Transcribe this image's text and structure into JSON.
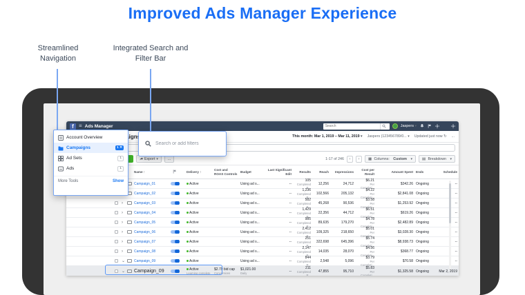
{
  "title": "Improved Ads Manager Experience",
  "callouts": {
    "navigation": "Streamlined Navigation",
    "search": "Integrated Search and Filter Bar"
  },
  "topbar": {
    "app_name": "Ads Manager",
    "search_placeholder": "Search",
    "user_name": "Jaspers",
    "caret": "▾"
  },
  "subheader": {
    "page_title": "Campaigns",
    "date_range": "This month: Mar 1, 2019 – Mar 11, 2019",
    "account": "Jaspers (123456789/0...",
    "updated": "Updated just now",
    "refresh_icon": "↻",
    "more": "..."
  },
  "search_overlay": {
    "placeholder": "Search or add filters"
  },
  "nav_overlay": {
    "items": [
      {
        "label": "Account Overview",
        "badge": ""
      },
      {
        "label": "Campaigns",
        "badge": "1 ✕"
      },
      {
        "label": "Ad Sets",
        "badge": "1"
      },
      {
        "label": "Ads",
        "badge": "1"
      }
    ],
    "more_tools": "More Tools",
    "show": "Show"
  },
  "toolbar": {
    "create": "Create",
    "export": "Export",
    "more": "...",
    "pagination": "1-17 of 246",
    "prev": "‹",
    "next": "›",
    "columns_label": "Columns:",
    "columns_value": "Custom",
    "breakdown": "Breakdown",
    "caret": "▾"
  },
  "table": {
    "headers": {
      "name": "Name ↑",
      "delivery": "Delivery ↑",
      "roas": "Cost and ROAS Controls",
      "budget": "Budget",
      "lastedit": "Last Significant Edit",
      "results": "Results",
      "reach": "Reach",
      "impressions": "Impressions",
      "cpr": "Cost per Result",
      "spent": "Amount Spent",
      "ends": "Ends",
      "schedule": "Schedule"
    },
    "rows": [
      {
        "name": "Campaign_01",
        "delivery": "Active",
        "budget": "Using ad s...",
        "lastedit": "--",
        "results": "105",
        "results_sub": "Completed R...",
        "reach": "12,256",
        "impressions": "24,712",
        "cpr": "$6.21",
        "cpr_sub": "Per Completi...",
        "spent": "$342.26",
        "ends": "Ongoing",
        "schedule": "--"
      },
      {
        "name": "Campaign_02",
        "delivery": "Active",
        "budget": "Using ad s...",
        "lastedit": "--",
        "results": "1,236",
        "results_sub": "Completed R...",
        "reach": "102,566",
        "impressions": "205,132",
        "cpr": "$4.22",
        "cpr_sub": "Per Completi...",
        "spent": "$2,841.08",
        "ends": "Ongoing",
        "schedule": "--"
      },
      {
        "name": "Campaign_03",
        "delivery": "Active",
        "budget": "Using ad s...",
        "lastedit": "--",
        "results": "582",
        "results_sub": "Completed R...",
        "reach": "45,268",
        "impressions": "90,536",
        "cpr": "$3.58",
        "cpr_sub": "Per Completi...",
        "spent": "$1,253.92",
        "ends": "Ongoing",
        "schedule": "--"
      },
      {
        "name": "Campaign_04",
        "delivery": "Active",
        "budget": "Using ad s...",
        "lastedit": "--",
        "results": "1,429",
        "results_sub": "Completed R...",
        "reach": "22,356",
        "impressions": "44,712",
        "cpr": "$6.51",
        "cpr_sub": "Per Completi...",
        "spent": "$619.26",
        "ends": "Ongoing",
        "schedule": "--"
      },
      {
        "name": "Campaign_05",
        "delivery": "Active",
        "budget": "Using ad s...",
        "lastedit": "--",
        "results": "985",
        "results_sub": "Completed R...",
        "reach": "89,635",
        "impressions": "179,270",
        "cpr": "$4.78",
        "cpr_sub": "Per Completi...",
        "spent": "$2,482.89",
        "ends": "Ongoing",
        "schedule": "--"
      },
      {
        "name": "Campaign_06",
        "delivery": "Active",
        "budget": "Using ad s...",
        "lastedit": "--",
        "results": "2,412",
        "results_sub": "Completed R...",
        "reach": "109,325",
        "impressions": "218,650",
        "cpr": "$5.01",
        "cpr_sub": "Per Completi...",
        "spent": "$3,028.30",
        "ends": "Ongoing",
        "schedule": "--"
      },
      {
        "name": "Campaign_07",
        "delivery": "Active",
        "budget": "Using ad s...",
        "lastedit": "--",
        "results": "251",
        "results_sub": "Completed R...",
        "reach": "322,698",
        "impressions": "645,396",
        "cpr": "$5.74",
        "cpr_sub": "Per Completi...",
        "spent": "$8,938.73",
        "ends": "Ongoing",
        "schedule": "--"
      },
      {
        "name": "Campaign_08",
        "delivery": "Active",
        "budget": "Using ad s...",
        "lastedit": "--",
        "results": "2,147",
        "results_sub": "Completed R...",
        "reach": "14,035",
        "impressions": "28,070",
        "cpr": "$4.56",
        "cpr_sub": "Per Completi...",
        "spent": "$368.77",
        "ends": "Ongoing",
        "schedule": "--"
      },
      {
        "name": "Campaign_09",
        "expanded": true,
        "delivery": "Active",
        "budget": "Using ad s...",
        "lastedit": "--",
        "results": "844",
        "results_sub": "Completed R...",
        "reach": "2,548",
        "impressions": "5,096",
        "cpr": "$3.79",
        "cpr_sub": "Per Completi...",
        "spent": "$70.58",
        "ends": "Ongoing",
        "schedule": "--"
      }
    ],
    "selected_row": {
      "name": "Campaign_09",
      "expanded": true,
      "delivery": "Active",
      "delivery_sub": "Learning complete",
      "roas": "$2.79 bid cap",
      "roas_sub": "Conversions",
      "budget": "$1,021.00",
      "budget_sub": "Daily",
      "lastedit": "--",
      "results": "211",
      "results_sub": "Completed R...",
      "reach": "47,855",
      "impressions": "95,710",
      "cpr": "$5.83",
      "cpr_sub": "Per Completi...",
      "spent": "$1,325.58",
      "ends": "Ongoing",
      "schedule": "Mar 2, 2019"
    }
  },
  "colors": {
    "accent_blue": "#1877f2",
    "title_blue": "#1a6ef5",
    "highlight_border": "#78a6f4",
    "create_green": "#42b72a",
    "active_green": "#42b72a",
    "topbar_navy": "#35455b",
    "device_bezel": "#333333"
  }
}
